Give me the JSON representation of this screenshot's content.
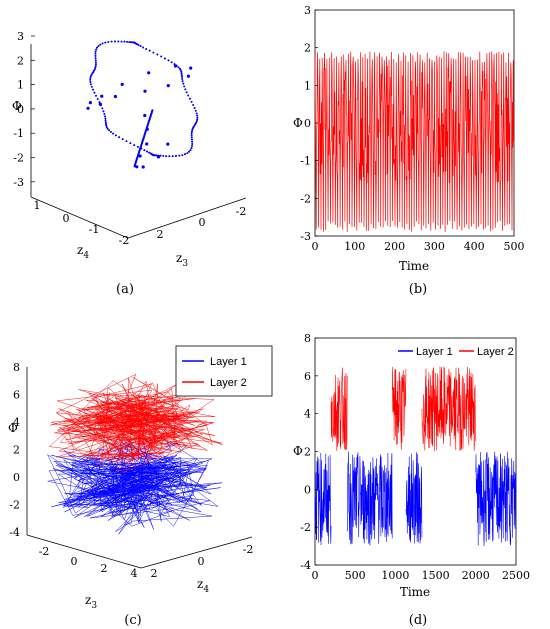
{
  "colors": {
    "layer1": "#0000ff",
    "layer2": "#ff0000",
    "axis": "#000000"
  },
  "chart_data": [
    {
      "panel": "a",
      "caption": "(a)",
      "type": "scatter",
      "projection": "3d",
      "axes": {
        "z": {
          "label": "Φ",
          "ticks": [
            "3",
            "2",
            "1",
            "0",
            "-1",
            "-2",
            "-3"
          ],
          "range": [
            -3,
            3
          ]
        },
        "x": {
          "label": "z4",
          "label_base": "z",
          "label_sub": "4",
          "ticks": [
            "1",
            "0",
            "-1",
            "-2"
          ],
          "range": [
            -2,
            1
          ]
        },
        "y": {
          "label": "z3",
          "label_base": "z",
          "label_sub": "3",
          "ticks": [
            "2",
            "0",
            "-2"
          ],
          "range": [
            -2,
            2
          ]
        }
      },
      "series": [
        {
          "color": "#0000ff",
          "points": [
            [
              -1.6,
              -1.0,
              2.4
            ],
            [
              -1.0,
              -1.4,
              2.0
            ],
            [
              -0.4,
              -1.3,
              1.3
            ],
            [
              0.3,
              -1.0,
              0.6
            ],
            [
              0.8,
              -0.4,
              0.3
            ],
            [
              1.0,
              0.2,
              0.2
            ],
            [
              0.9,
              0.8,
              0.5
            ],
            [
              0.5,
              1.3,
              1.0
            ],
            [
              -0.2,
              1.5,
              1.6
            ],
            [
              -0.9,
              1.3,
              2.0
            ],
            [
              -1.5,
              0.6,
              2.3
            ],
            [
              -1.7,
              -0.3,
              2.4
            ],
            [
              -1.2,
              0.2,
              -0.5
            ],
            [
              -0.6,
              0.5,
              -1.5
            ],
            [
              0.2,
              0.8,
              -2.5
            ],
            [
              0.8,
              1.2,
              -3.0
            ],
            [
              0.4,
              0.9,
              -2.2
            ],
            [
              -0.4,
              0.3,
              -1.0
            ],
            [
              -1.0,
              -0.3,
              0.2
            ],
            [
              -1.4,
              -0.8,
              1.2
            ]
          ]
        }
      ]
    },
    {
      "panel": "b",
      "caption": "(b)",
      "type": "line",
      "ylabel": "Φ",
      "xlabel": "Time",
      "xlim": [
        0,
        500
      ],
      "ylim": [
        -3,
        3
      ],
      "xticks": [
        "0",
        "100",
        "200",
        "300",
        "400",
        "500"
      ],
      "yticks": [
        "-3",
        "-2",
        "-1",
        "0",
        "1",
        "2",
        "3"
      ],
      "series": [
        {
          "color": "#ff0000",
          "n_points": 500,
          "envelope": {
            "upper_peaks": [
              1.9,
              2.0
            ],
            "lower_peaks": [
              -2.8,
              -2.9
            ]
          }
        }
      ]
    },
    {
      "panel": "c",
      "caption": "(c)",
      "type": "line",
      "projection": "3d",
      "axes": {
        "z": {
          "label": "Φ",
          "ticks": [
            "8",
            "6",
            "4",
            "2",
            "0",
            "-2",
            "-4"
          ],
          "range": [
            -4,
            8
          ]
        },
        "x": {
          "label": "z3",
          "label_base": "z",
          "label_sub": "3",
          "ticks": [
            "-2",
            "0",
            "2",
            "4"
          ],
          "range": [
            -3,
            4
          ]
        },
        "y": {
          "label": "z4",
          "label_base": "z",
          "label_sub": "4",
          "ticks": [
            "2",
            "0",
            "-2"
          ],
          "range": [
            -2,
            2
          ]
        }
      },
      "legend": {
        "position": "top-right"
      },
      "series": [
        {
          "name": "Layer 1",
          "color": "#0000ff",
          "phi_range": [
            -2.5,
            2
          ]
        },
        {
          "name": "Layer 2",
          "color": "#ff0000",
          "phi_range": [
            2,
            6
          ]
        }
      ]
    },
    {
      "panel": "d",
      "caption": "(d)",
      "type": "line",
      "ylabel": "Φ",
      "xlabel": "Time",
      "xlim": [
        0,
        2500
      ],
      "ylim": [
        -4,
        8
      ],
      "xticks": [
        "0",
        "500",
        "1000",
        "1500",
        "2000",
        "2500"
      ],
      "yticks": [
        "-4",
        "-2",
        "0",
        "2",
        "4",
        "6",
        "8"
      ],
      "legend": {
        "position": "top-right"
      },
      "series": [
        {
          "name": "Layer 1",
          "color": "#0000ff",
          "segments": [
            [
              0,
              200
            ],
            [
              400,
              960
            ],
            [
              1130,
              1330
            ],
            [
              2000,
              2500
            ]
          ],
          "range": [
            -3,
            2
          ]
        },
        {
          "name": "Layer 2",
          "color": "#ff0000",
          "segments": [
            [
              200,
              400
            ],
            [
              960,
              1130
            ],
            [
              1330,
              2000
            ]
          ],
          "range": [
            2,
            6.5
          ]
        }
      ]
    }
  ]
}
